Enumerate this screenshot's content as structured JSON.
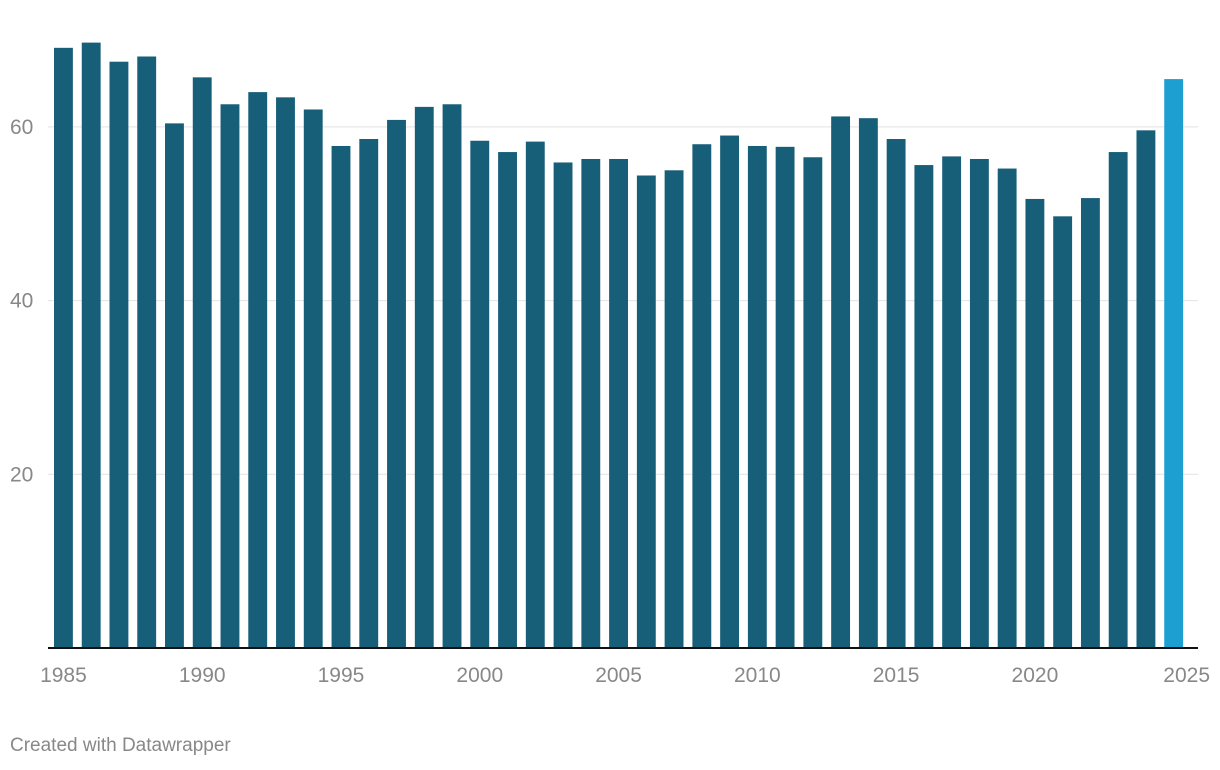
{
  "chart_data": {
    "type": "bar",
    "categories": [
      "1985",
      "1986",
      "1987",
      "1988",
      "1989",
      "1990",
      "1991",
      "1992",
      "1993",
      "1994",
      "1995",
      "1996",
      "1997",
      "1998",
      "1999",
      "2000",
      "2001",
      "2002",
      "2003",
      "2004",
      "2005",
      "2006",
      "2007",
      "2008",
      "2009",
      "2010",
      "2011",
      "2012",
      "2013",
      "2014",
      "2015",
      "2016",
      "2017",
      "2018",
      "2019",
      "2020",
      "2021",
      "2022",
      "2023",
      "2024",
      "2025"
    ],
    "values": [
      69.1,
      69.7,
      67.5,
      68.1,
      60.4,
      65.7,
      62.6,
      64.0,
      63.4,
      62.0,
      57.8,
      58.6,
      60.8,
      62.3,
      62.6,
      58.4,
      57.1,
      58.3,
      55.9,
      56.3,
      56.3,
      54.4,
      55.0,
      58.0,
      59.0,
      57.8,
      57.7,
      56.5,
      61.2,
      61.0,
      58.6,
      55.6,
      56.6,
      56.3,
      55.2,
      51.7,
      49.7,
      51.8,
      57.1,
      59.6,
      65.5
    ],
    "highlight_index": 40,
    "ylim": [
      0,
      70
    ],
    "y_ticks": [
      20,
      40,
      60
    ],
    "x_tick_labels": [
      "1985",
      "1990",
      "1995",
      "2000",
      "2005",
      "2010",
      "2015",
      "2020",
      "2025"
    ],
    "grid": true,
    "title": "",
    "xlabel": "",
    "ylabel": ""
  },
  "colors": {
    "bar": "#175e79",
    "highlight": "#1d9fd1",
    "grid": "#e2e2e2",
    "axis": "#111111",
    "label": "#888888"
  },
  "footer": {
    "credit": "Created with Datawrapper"
  }
}
